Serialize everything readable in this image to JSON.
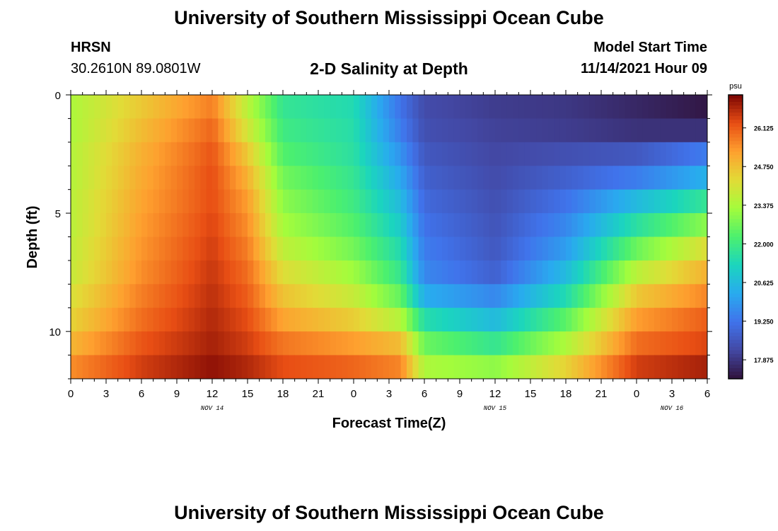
{
  "header": {
    "title": "University of Southern Mississippi Ocean Cube",
    "station_name": "HRSN",
    "station_coords": "30.2610N  89.0801W",
    "plot_title": "2-D Salinity at Depth",
    "model_start_label": "Model Start Time",
    "model_start_value": "11/14/2021 Hour 09"
  },
  "footer": {
    "title": "University of Southern Mississippi Ocean Cube"
  },
  "chart_data": {
    "type": "heatmap",
    "title": "2-D Salinity at Depth",
    "xlabel": "Forecast Time(Z)",
    "ylabel": "Depth (ft)",
    "x_ticks": [
      "0",
      "3",
      "6",
      "9",
      "12",
      "15",
      "18",
      "21",
      "0",
      "3",
      "6",
      "9",
      "12",
      "15",
      "18",
      "21",
      "0",
      "3",
      "6"
    ],
    "x_hours_range": [
      0,
      54
    ],
    "date_labels": [
      {
        "text": "NOV 14",
        "hour": 12
      },
      {
        "text": "NOV 15",
        "hour": 36
      },
      {
        "text": "NOV 16",
        "hour": 51
      }
    ],
    "y_ticks": [
      "0",
      "5",
      "10"
    ],
    "y_tick_values": [
      0,
      5,
      10
    ],
    "ylim": [
      0,
      12
    ],
    "depth_levels": 12,
    "colorbar": {
      "unit": "psu",
      "ticks": [
        "26.125",
        "24.750",
        "23.375",
        "22.000",
        "20.625",
        "19.250",
        "17.875"
      ],
      "tick_values": [
        26.125,
        24.75,
        23.375,
        22.0,
        20.625,
        19.25,
        17.875
      ],
      "range": [
        17.2,
        27.3
      ]
    },
    "salinity_profile_psu": {
      "description": "salinity by forecast hour (columns) and depth band (rows)",
      "hours": [
        0,
        6,
        12,
        15,
        18,
        24,
        28,
        30,
        36,
        42,
        48,
        54
      ],
      "rows": [
        [
          23.4,
          24.6,
          25.7,
          23.6,
          21.8,
          21.4,
          19.2,
          18.3,
          18.0,
          17.9,
          17.6,
          17.3
        ],
        [
          23.4,
          24.8,
          26.0,
          24.0,
          22.0,
          21.5,
          19.4,
          18.4,
          18.1,
          18.0,
          17.8,
          17.8
        ],
        [
          23.5,
          25.0,
          26.2,
          24.6,
          22.3,
          21.6,
          19.8,
          18.6,
          18.2,
          18.4,
          18.6,
          19.4
        ],
        [
          23.5,
          25.1,
          26.3,
          25.0,
          22.7,
          21.8,
          20.2,
          18.8,
          18.3,
          18.8,
          19.4,
          20.4
        ],
        [
          23.6,
          25.2,
          26.3,
          25.3,
          23.0,
          22.0,
          20.6,
          19.0,
          18.4,
          19.2,
          20.6,
          21.8
        ],
        [
          23.6,
          25.3,
          26.4,
          25.5,
          23.3,
          22.3,
          21.0,
          19.2,
          18.5,
          19.6,
          21.6,
          23.0
        ],
        [
          23.7,
          25.4,
          26.5,
          25.7,
          23.7,
          22.7,
          21.4,
          19.4,
          18.6,
          20.0,
          22.6,
          24.2
        ],
        [
          23.8,
          25.5,
          26.6,
          25.9,
          24.2,
          23.2,
          21.8,
          19.6,
          18.8,
          20.6,
          23.6,
          25.0
        ],
        [
          24.1,
          25.7,
          26.7,
          26.1,
          24.7,
          23.8,
          22.5,
          20.3,
          19.6,
          21.4,
          24.6,
          25.6
        ],
        [
          24.4,
          25.9,
          26.8,
          26.3,
          25.2,
          24.5,
          23.5,
          21.5,
          20.6,
          22.4,
          25.3,
          26.1
        ],
        [
          24.9,
          26.2,
          26.9,
          26.5,
          25.8,
          25.3,
          24.8,
          22.6,
          21.8,
          23.4,
          25.9,
          26.4
        ],
        [
          25.5,
          26.5,
          27.1,
          26.8,
          26.3,
          26.0,
          25.6,
          23.4,
          23.0,
          24.4,
          26.5,
          26.9
        ]
      ]
    }
  }
}
